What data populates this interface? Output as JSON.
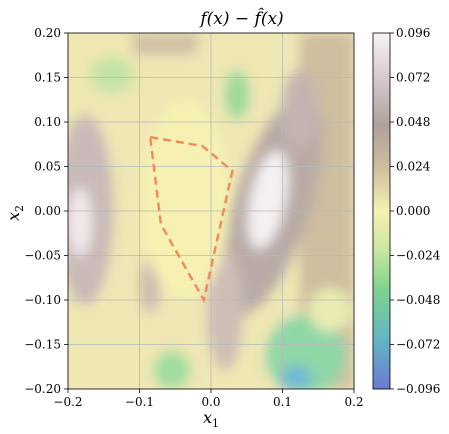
{
  "chart_data": {
    "type": "heatmap",
    "title": "f(x) − f̂(x)",
    "xlabel": "x",
    "xlabel_sub": "1",
    "ylabel": "x",
    "ylabel_sub": "2",
    "xlim": [
      -0.2,
      0.2
    ],
    "ylim": [
      -0.2,
      0.2
    ],
    "grid": true,
    "x_ticks": [
      -0.2,
      -0.1,
      0.0,
      0.1,
      0.2
    ],
    "x_tick_labels": [
      "−0.2",
      "−0.1",
      "0.0",
      "0.1",
      "0.2"
    ],
    "y_ticks": [
      0.2,
      0.15,
      0.1,
      0.05,
      0.0,
      -0.05,
      -0.1,
      -0.15,
      -0.2
    ],
    "y_tick_labels": [
      "0.20",
      "0.15",
      "0.10",
      "0.05",
      "0.00",
      "−0.05",
      "−0.10",
      "−0.15",
      "−0.20"
    ],
    "colorbar": {
      "range": [
        -0.096,
        0.096
      ],
      "ticks": [
        0.096,
        0.072,
        0.048,
        0.024,
        0.0,
        -0.024,
        -0.048,
        -0.072,
        -0.096
      ],
      "tick_labels": [
        "0.096",
        "0.072",
        "0.048",
        "0.024",
        "0.000",
        "−0.024",
        "−0.048",
        "−0.072",
        "−0.096"
      ]
    },
    "colors": {
      "max": "#f7f2f5",
      "high": "#b3a39f",
      "mid_high": "#d9cfb0",
      "zero": "#f6f1b0",
      "low": "#7fd08d",
      "min": "#6b7fd6",
      "region_outline": "#f08a5a"
    },
    "highlighted_region": {
      "style": "dashed",
      "vertices": [
        [
          -0.085,
          0.083
        ],
        [
          -0.012,
          0.073
        ],
        [
          0.03,
          0.045
        ],
        [
          -0.01,
          -0.1
        ],
        [
          -0.07,
          -0.015
        ]
      ]
    }
  }
}
